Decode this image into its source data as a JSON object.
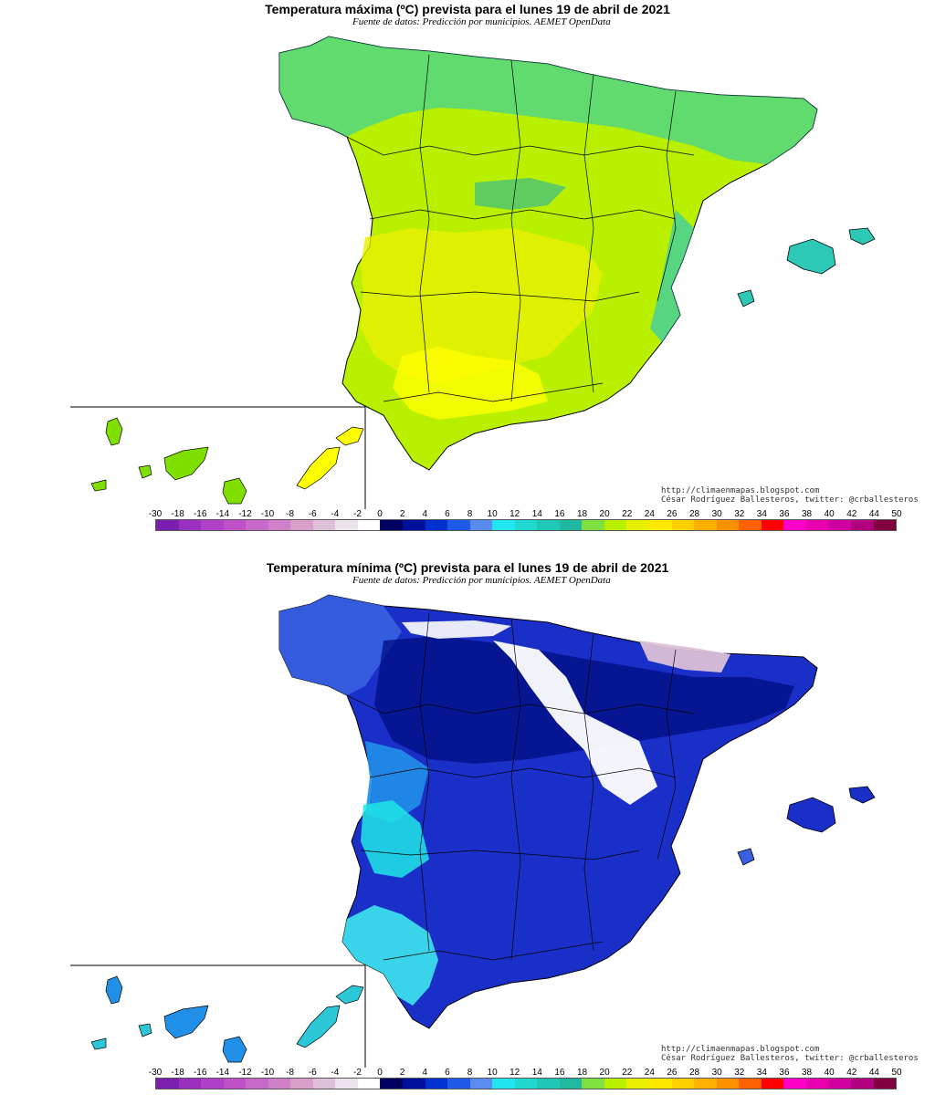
{
  "panels": [
    {
      "id": "max",
      "title": "Temperatura máxima (ºC) prevista para el lunes 19 de abril de 2021",
      "source": "Fuente de datos: Predicción por municipios. AEMET OpenData",
      "credit_url": "http://climaenmapas.blogspot.com",
      "credit_author": "César Rodríguez Ballesteros, twitter: @crballesteros",
      "map_colors": {
        "base": "#b8f000",
        "north": "#33d0a8",
        "coast": "#2ec9b6",
        "warm": "#e8f000",
        "hot": "#ffff00",
        "mountain": "#23b3a0",
        "islands": "#7fe000"
      }
    },
    {
      "id": "min",
      "title": "Temperatura mínima (ºC) prevista para el lunes 19 de abril de 2021",
      "source": "Fuente de datos: Predicción por municipios. AEMET OpenData",
      "credit_url": "http://climaenmapas.blogspot.com",
      "credit_author": "César Rodríguez Ballesteros, twitter: @crballesteros",
      "map_colors": {
        "base": "#1a2fc8",
        "north": "#3860e0",
        "coast": "#2090e8",
        "warm": "#20e6e6",
        "hot": "#40f0f0",
        "mountain": "#000f80",
        "islands": "#2dc8d8",
        "cold": "#ffffff",
        "frost": "#dcc0d8"
      }
    }
  ],
  "legend": {
    "labels": [
      "-30",
      "-18",
      "-16",
      "-14",
      "-12",
      "-10",
      "-8",
      "-6",
      "-4",
      "-2",
      "0",
      "2",
      "4",
      "6",
      "8",
      "10",
      "12",
      "14",
      "16",
      "18",
      "20",
      "22",
      "24",
      "26",
      "28",
      "30",
      "32",
      "34",
      "36",
      "38",
      "40",
      "42",
      "44",
      "50"
    ],
    "colors": [
      "#7a1fb0",
      "#9a2fc0",
      "#b040c8",
      "#c050c8",
      "#c868c8",
      "#d080c8",
      "#d8a0c8",
      "#e0c0d8",
      "#ece4ec",
      "#ffffff",
      "#000060",
      "#00109c",
      "#0030d0",
      "#1e5ae8",
      "#5a8cf0",
      "#20e6f0",
      "#20d8d0",
      "#20c8b8",
      "#20b8a0",
      "#80e040",
      "#b8f000",
      "#e8f000",
      "#ffe800",
      "#ffd000",
      "#ffb000",
      "#ff9000",
      "#ff6000",
      "#ff0000",
      "#ff00c8",
      "#e800b0",
      "#d000a0",
      "#b00080",
      "#800040"
    ]
  }
}
